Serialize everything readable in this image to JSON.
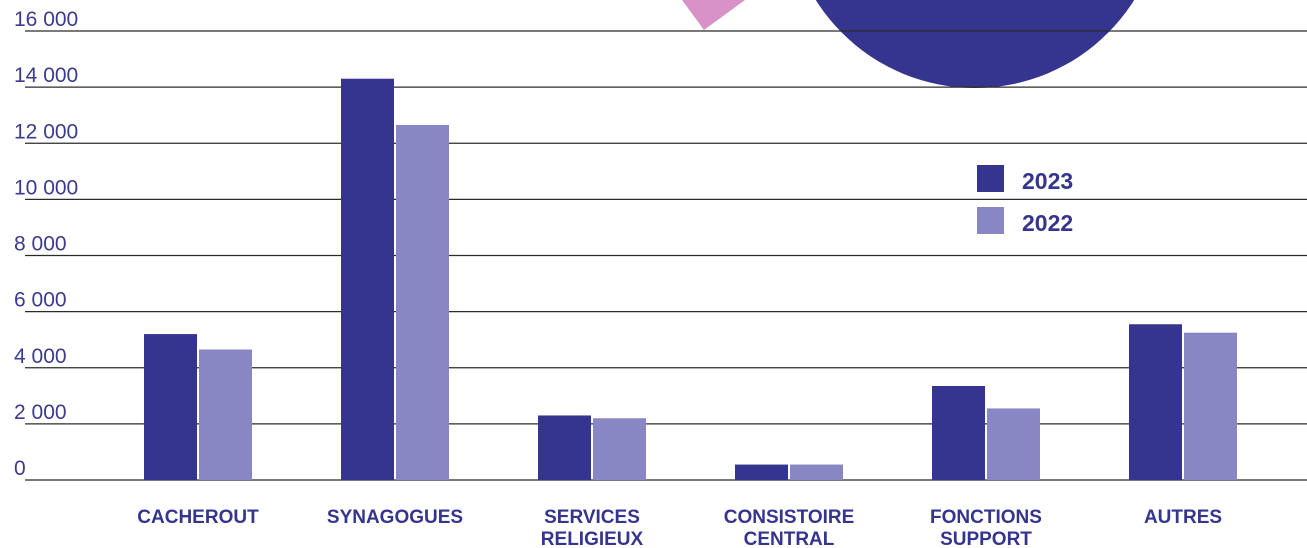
{
  "chart_data": {
    "type": "bar",
    "title": "",
    "xlabel": "",
    "ylabel": "",
    "ylim": [
      0,
      16000
    ],
    "yticks": [
      0,
      2000,
      4000,
      6000,
      8000,
      10000,
      12000,
      14000,
      16000
    ],
    "ytick_labels": [
      "0",
      "2 000",
      "4 000",
      "6 000",
      "8 000",
      "10 000",
      "12 000",
      "14 000",
      "16 000"
    ],
    "categories": [
      [
        "CACHEROUT"
      ],
      [
        "SYNAGOGUES"
      ],
      [
        "SERVICES",
        "RELIGIEUX"
      ],
      [
        "CONSISTOIRE",
        "CENTRAL"
      ],
      [
        "FONCTIONS",
        "SUPPORT"
      ],
      [
        "AUTRES"
      ]
    ],
    "series": [
      {
        "name": "2023",
        "color": "#35358f",
        "values": [
          5200,
          14300,
          2300,
          550,
          3350,
          5550
        ]
      },
      {
        "name": "2022",
        "color": "#8886c3",
        "values": [
          4650,
          12650,
          2200,
          550,
          2550,
          5250
        ]
      }
    ],
    "grid": true,
    "legend_position": "right",
    "decorations": {
      "circle_color": "#35358f",
      "triangle_color": "#d892c7"
    }
  }
}
